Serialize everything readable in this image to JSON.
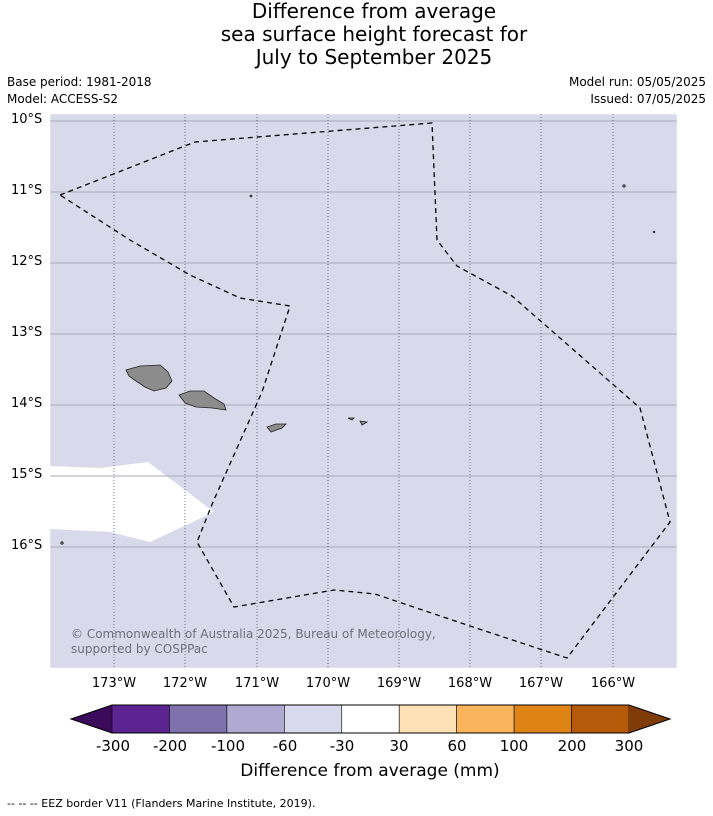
{
  "title": {
    "line1": "Difference from average",
    "line2": "sea surface height forecast for",
    "line3": "July to September 2025"
  },
  "meta": {
    "base_period": "Base period: 1981-2018",
    "model": "Model: ACCESS-S2",
    "model_run": "Model run: 05/05/2025",
    "issued": "Issued: 07/05/2025"
  },
  "map": {
    "lat_labels": [
      "10°S",
      "11°S",
      "12°S",
      "13°S",
      "14°S",
      "15°S",
      "16°S"
    ],
    "lon_labels": [
      "173°W",
      "172°W",
      "171°W",
      "170°W",
      "169°W",
      "168°W",
      "167°W",
      "166°W"
    ],
    "ocean_color": "#d8d9ea",
    "land_color": "#8c8c8c",
    "anomaly_class_shown": "-60 to -30",
    "credit": "© Commonwealth of Australia 2025, Bureau of Meteorology, supported by COSPPac"
  },
  "colorbar": {
    "ticks": [
      "-300",
      "-200",
      "-100",
      "-60",
      "-30",
      "30",
      "60",
      "100",
      "200",
      "300"
    ],
    "colors": [
      "#3b0a5a",
      "#5c2490",
      "#7e72ad",
      "#b0a9d2",
      "#d8d9ea",
      "#ffffff",
      "#fde0b5",
      "#fab45c",
      "#e08315",
      "#b55a09",
      "#7f3b08"
    ],
    "title": "Difference from average (mm)"
  },
  "footnote": "-- -- -- EEZ border V11 (Flanders Marine Institute, 2019)."
}
